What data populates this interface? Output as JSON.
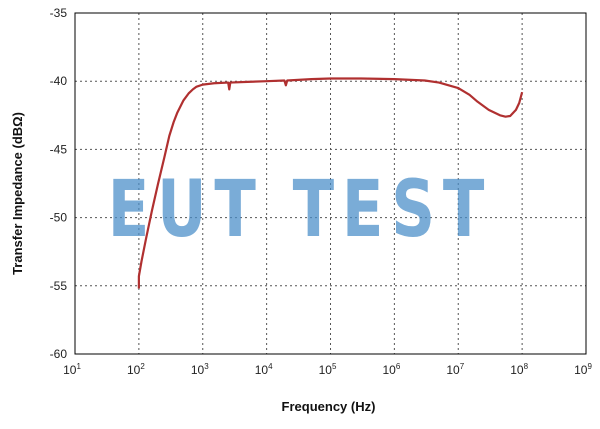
{
  "chart_data": {
    "type": "line",
    "xlabel": "Frequency (Hz)",
    "ylabel": "Transfer Impedance (dBΩ)",
    "x_scale": "log",
    "xlim": [
      10,
      1000000000
    ],
    "ylim": [
      -60,
      -35
    ],
    "x_ticks": [
      {
        "value": 10,
        "base": "10",
        "exp": "1"
      },
      {
        "value": 100,
        "base": "10",
        "exp": "2"
      },
      {
        "value": 1000,
        "base": "10",
        "exp": "3"
      },
      {
        "value": 10000,
        "base": "10",
        "exp": "4"
      },
      {
        "value": 100000,
        "base": "10",
        "exp": "5"
      },
      {
        "value": 1000000,
        "base": "10",
        "exp": "6"
      },
      {
        "value": 10000000,
        "base": "10",
        "exp": "7"
      },
      {
        "value": 100000000,
        "base": "10",
        "exp": "8"
      },
      {
        "value": 1000000000,
        "base": "10",
        "exp": "9"
      }
    ],
    "y_ticks": [
      "-35",
      "-40",
      "-45",
      "-50",
      "-55",
      "-60"
    ],
    "grid": "dotted",
    "series": [
      {
        "color": "#b03030",
        "points": [
          [
            100,
            -55.2
          ],
          [
            100,
            -54.3
          ],
          [
            110,
            -53.2
          ],
          [
            130,
            -51.5
          ],
          [
            160,
            -49.5
          ],
          [
            200,
            -47.5
          ],
          [
            250,
            -45.6
          ],
          [
            300,
            -44.0
          ],
          [
            350,
            -43.0
          ],
          [
            400,
            -42.3
          ],
          [
            500,
            -41.4
          ],
          [
            600,
            -40.9
          ],
          [
            700,
            -40.6
          ],
          [
            800,
            -40.4
          ],
          [
            1000,
            -40.25
          ],
          [
            1500,
            -40.15
          ],
          [
            2500,
            -40.1
          ],
          [
            2600,
            -40.6
          ],
          [
            2700,
            -40.1
          ],
          [
            5000,
            -40.05
          ],
          [
            10000,
            -40.0
          ],
          [
            19000,
            -39.95
          ],
          [
            20000,
            -40.3
          ],
          [
            21000,
            -39.95
          ],
          [
            50000,
            -39.85
          ],
          [
            100000,
            -39.8
          ],
          [
            300000,
            -39.8
          ],
          [
            1000000,
            -39.85
          ],
          [
            3000000,
            -39.95
          ],
          [
            5000000,
            -40.1
          ],
          [
            10000000,
            -40.5
          ],
          [
            15000000,
            -41.0
          ],
          [
            20000000,
            -41.5
          ],
          [
            30000000,
            -42.1
          ],
          [
            45000000,
            -42.5
          ],
          [
            55000000,
            -42.6
          ],
          [
            65000000,
            -42.55
          ],
          [
            80000000,
            -42.1
          ],
          [
            90000000,
            -41.6
          ],
          [
            100000000,
            -40.8
          ]
        ]
      }
    ]
  },
  "watermark": {
    "text": "EUT TEST"
  }
}
